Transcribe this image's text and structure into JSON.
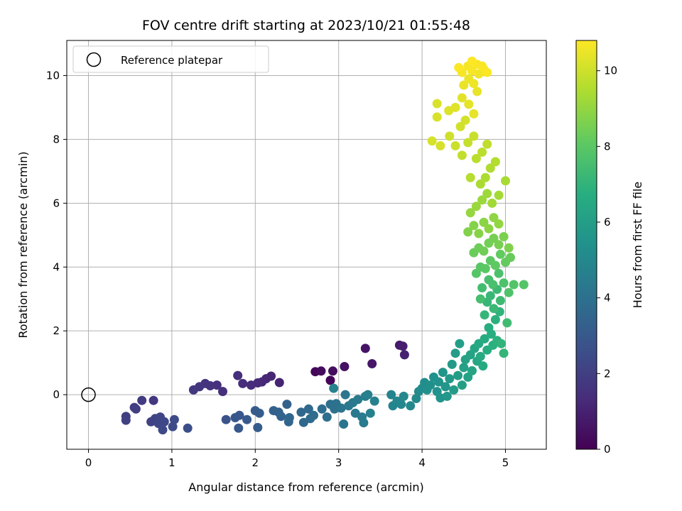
{
  "chart_data": {
    "type": "scatter",
    "title": "FOV centre drift starting at 2023/10/21 01:55:48",
    "xlabel": "Angular distance from reference (arcmin)",
    "ylabel": "Rotation from reference (arcmin)",
    "xlim": [
      -0.26,
      5.49
    ],
    "ylim": [
      -1.71,
      11.1
    ],
    "xticks": [
      0,
      1,
      2,
      3,
      4,
      5
    ],
    "yticks": [
      0,
      2,
      4,
      6,
      8,
      10
    ],
    "grid": true,
    "legend": {
      "position": "top-left",
      "entries": [
        {
          "label": "Reference platepar",
          "marker": "open-circle"
        }
      ]
    },
    "reference_point": {
      "x": 0,
      "y": 0
    },
    "colorbar": {
      "label": "Hours from first FF file",
      "colormap": "viridis",
      "range": [
        0,
        10.8
      ],
      "ticks": [
        0,
        2,
        4,
        6,
        8,
        10
      ]
    },
    "points": [
      {
        "x": 2.9,
        "y": 0.45,
        "h": 0.1
      },
      {
        "x": 2.72,
        "y": 0.72,
        "h": 0.2
      },
      {
        "x": 2.79,
        "y": 0.74,
        "h": 0.3
      },
      {
        "x": 2.93,
        "y": 0.74,
        "h": 0.4
      },
      {
        "x": 3.07,
        "y": 0.88,
        "h": 0.5
      },
      {
        "x": 3.32,
        "y": 1.45,
        "h": 0.6
      },
      {
        "x": 3.4,
        "y": 0.97,
        "h": 0.7
      },
      {
        "x": 3.73,
        "y": 1.55,
        "h": 0.8
      },
      {
        "x": 3.77,
        "y": 1.52,
        "h": 0.9
      },
      {
        "x": 3.79,
        "y": 1.25,
        "h": 1.0
      },
      {
        "x": 2.29,
        "y": 0.38,
        "h": 1.1
      },
      {
        "x": 2.19,
        "y": 0.58,
        "h": 1.15
      },
      {
        "x": 2.13,
        "y": 0.5,
        "h": 1.2
      },
      {
        "x": 2.08,
        "y": 0.4,
        "h": 1.25
      },
      {
        "x": 2.03,
        "y": 0.37,
        "h": 1.3
      },
      {
        "x": 1.95,
        "y": 0.3,
        "h": 1.35
      },
      {
        "x": 1.85,
        "y": 0.35,
        "h": 1.4
      },
      {
        "x": 1.79,
        "y": 0.6,
        "h": 1.45
      },
      {
        "x": 1.61,
        "y": 0.1,
        "h": 1.5
      },
      {
        "x": 1.54,
        "y": 0.3,
        "h": 1.55
      },
      {
        "x": 1.46,
        "y": 0.28,
        "h": 1.6
      },
      {
        "x": 1.4,
        "y": 0.35,
        "h": 1.65
      },
      {
        "x": 1.33,
        "y": 0.25,
        "h": 1.7
      },
      {
        "x": 1.26,
        "y": 0.15,
        "h": 1.75
      },
      {
        "x": 0.78,
        "y": -0.18,
        "h": 1.8
      },
      {
        "x": 0.64,
        "y": -0.18,
        "h": 1.9
      },
      {
        "x": 0.55,
        "y": -0.4,
        "h": 1.95
      },
      {
        "x": 0.57,
        "y": -0.45,
        "h": 2.0
      },
      {
        "x": 0.45,
        "y": -0.68,
        "h": 2.05
      },
      {
        "x": 0.45,
        "y": -0.8,
        "h": 2.1
      },
      {
        "x": 0.75,
        "y": -0.85,
        "h": 2.15
      },
      {
        "x": 0.8,
        "y": -0.75,
        "h": 2.2
      },
      {
        "x": 0.86,
        "y": -0.7,
        "h": 2.25
      },
      {
        "x": 0.84,
        "y": -0.9,
        "h": 2.3
      },
      {
        "x": 0.91,
        "y": -0.85,
        "h": 2.35
      },
      {
        "x": 0.89,
        "y": -1.1,
        "h": 2.4
      },
      {
        "x": 1.01,
        "y": -1.0,
        "h": 2.45
      },
      {
        "x": 1.03,
        "y": -0.78,
        "h": 2.5
      },
      {
        "x": 1.19,
        "y": -1.05,
        "h": 2.6
      },
      {
        "x": 1.65,
        "y": -0.78,
        "h": 2.8
      },
      {
        "x": 1.76,
        "y": -0.72,
        "h": 2.9
      },
      {
        "x": 1.81,
        "y": -0.65,
        "h": 2.95
      },
      {
        "x": 1.8,
        "y": -1.05,
        "h": 3.0
      },
      {
        "x": 1.9,
        "y": -0.78,
        "h": 3.05
      },
      {
        "x": 2.0,
        "y": -0.5,
        "h": 3.1
      },
      {
        "x": 2.05,
        "y": -0.58,
        "h": 3.15
      },
      {
        "x": 2.03,
        "y": -1.03,
        "h": 3.2
      },
      {
        "x": 2.22,
        "y": -0.5,
        "h": 3.3
      },
      {
        "x": 2.28,
        "y": -0.55,
        "h": 3.35
      },
      {
        "x": 2.31,
        "y": -0.68,
        "h": 3.4
      },
      {
        "x": 2.38,
        "y": -0.3,
        "h": 3.45
      },
      {
        "x": 2.4,
        "y": -0.85,
        "h": 3.5
      },
      {
        "x": 2.41,
        "y": -0.72,
        "h": 3.55
      },
      {
        "x": 2.55,
        "y": -0.55,
        "h": 3.6
      },
      {
        "x": 2.58,
        "y": -0.87,
        "h": 3.65
      },
      {
        "x": 2.64,
        "y": -0.45,
        "h": 3.7
      },
      {
        "x": 2.66,
        "y": -0.75,
        "h": 3.75
      },
      {
        "x": 2.7,
        "y": -0.65,
        "h": 3.8
      },
      {
        "x": 2.8,
        "y": -0.45,
        "h": 3.85
      },
      {
        "x": 2.86,
        "y": -0.7,
        "h": 3.9
      },
      {
        "x": 2.9,
        "y": -0.3,
        "h": 3.95
      },
      {
        "x": 2.95,
        "y": -0.45,
        "h": 4.0
      },
      {
        "x": 2.97,
        "y": -0.28,
        "h": 4.05
      },
      {
        "x": 3.03,
        "y": -0.42,
        "h": 4.1
      },
      {
        "x": 3.06,
        "y": -0.92,
        "h": 4.15
      },
      {
        "x": 3.08,
        "y": 0.0,
        "h": 4.2
      },
      {
        "x": 3.12,
        "y": -0.35,
        "h": 4.25
      },
      {
        "x": 3.17,
        "y": -0.25,
        "h": 4.3
      },
      {
        "x": 3.2,
        "y": -0.58,
        "h": 4.35
      },
      {
        "x": 3.23,
        "y": -0.15,
        "h": 4.4
      },
      {
        "x": 3.28,
        "y": -0.7,
        "h": 4.45
      },
      {
        "x": 3.3,
        "y": -0.88,
        "h": 4.5
      },
      {
        "x": 3.32,
        "y": -0.05,
        "h": 4.55
      },
      {
        "x": 3.35,
        "y": 0.0,
        "h": 4.6
      },
      {
        "x": 3.38,
        "y": -0.58,
        "h": 4.65
      },
      {
        "x": 3.43,
        "y": -0.2,
        "h": 4.7
      },
      {
        "x": 2.94,
        "y": 0.2,
        "h": 4.75
      },
      {
        "x": 3.63,
        "y": 0.0,
        "h": 4.8
      },
      {
        "x": 3.65,
        "y": -0.35,
        "h": 4.85
      },
      {
        "x": 3.7,
        "y": -0.2,
        "h": 4.9
      },
      {
        "x": 3.75,
        "y": -0.3,
        "h": 4.95
      },
      {
        "x": 3.78,
        "y": -0.05,
        "h": 5.0
      },
      {
        "x": 3.86,
        "y": -0.35,
        "h": 5.05
      },
      {
        "x": 3.93,
        "y": -0.12,
        "h": 5.1
      },
      {
        "x": 3.96,
        "y": 0.1,
        "h": 5.15
      },
      {
        "x": 4.0,
        "y": 0.2,
        "h": 5.2
      },
      {
        "x": 4.03,
        "y": 0.38,
        "h": 5.25
      },
      {
        "x": 4.06,
        "y": 0.15,
        "h": 5.3
      },
      {
        "x": 4.1,
        "y": 0.3,
        "h": 5.35
      },
      {
        "x": 4.14,
        "y": 0.55,
        "h": 5.4
      },
      {
        "x": 4.18,
        "y": 0.1,
        "h": 5.45
      },
      {
        "x": 4.2,
        "y": 0.4,
        "h": 5.5
      },
      {
        "x": 4.22,
        "y": -0.1,
        "h": 5.55
      },
      {
        "x": 4.25,
        "y": 0.7,
        "h": 5.6
      },
      {
        "x": 4.28,
        "y": 0.25,
        "h": 5.65
      },
      {
        "x": 4.3,
        "y": -0.05,
        "h": 5.7
      },
      {
        "x": 4.33,
        "y": 0.5,
        "h": 5.75
      },
      {
        "x": 4.36,
        "y": 0.95,
        "h": 5.8
      },
      {
        "x": 4.38,
        "y": 0.15,
        "h": 5.85
      },
      {
        "x": 4.4,
        "y": 1.3,
        "h": 5.9
      },
      {
        "x": 4.43,
        "y": 0.6,
        "h": 5.95
      },
      {
        "x": 4.45,
        "y": 1.6,
        "h": 6.0
      },
      {
        "x": 4.48,
        "y": 0.3,
        "h": 6.05
      },
      {
        "x": 4.5,
        "y": 0.85,
        "h": 6.1
      },
      {
        "x": 4.52,
        "y": 1.1,
        "h": 6.15
      },
      {
        "x": 4.55,
        "y": 0.55,
        "h": 6.2
      },
      {
        "x": 4.58,
        "y": 1.25,
        "h": 6.25
      },
      {
        "x": 4.6,
        "y": 0.75,
        "h": 6.3
      },
      {
        "x": 4.63,
        "y": 1.45,
        "h": 6.35
      },
      {
        "x": 4.66,
        "y": 1.05,
        "h": 6.4
      },
      {
        "x": 4.68,
        "y": 1.6,
        "h": 6.45
      },
      {
        "x": 4.7,
        "y": 1.2,
        "h": 6.5
      },
      {
        "x": 4.73,
        "y": 0.9,
        "h": 6.55
      },
      {
        "x": 4.75,
        "y": 1.75,
        "h": 6.6
      },
      {
        "x": 4.78,
        "y": 1.4,
        "h": 6.65
      },
      {
        "x": 4.8,
        "y": 2.1,
        "h": 6.7
      },
      {
        "x": 4.83,
        "y": 1.9,
        "h": 6.75
      },
      {
        "x": 4.85,
        "y": 1.55,
        "h": 6.8
      },
      {
        "x": 4.88,
        "y": 2.35,
        "h": 6.85
      },
      {
        "x": 4.9,
        "y": 1.7,
        "h": 6.9
      },
      {
        "x": 4.93,
        "y": 2.6,
        "h": 6.95
      },
      {
        "x": 4.95,
        "y": 1.6,
        "h": 7.0
      },
      {
        "x": 4.98,
        "y": 1.3,
        "h": 7.05
      },
      {
        "x": 4.75,
        "y": 2.5,
        "h": 7.1
      },
      {
        "x": 4.78,
        "y": 2.9,
        "h": 7.15
      },
      {
        "x": 4.82,
        "y": 3.1,
        "h": 7.2
      },
      {
        "x": 4.86,
        "y": 2.7,
        "h": 7.25
      },
      {
        "x": 4.9,
        "y": 3.3,
        "h": 7.3
      },
      {
        "x": 4.94,
        "y": 2.95,
        "h": 7.35
      },
      {
        "x": 5.02,
        "y": 2.25,
        "h": 7.4
      },
      {
        "x": 4.72,
        "y": 3.35,
        "h": 7.45
      },
      {
        "x": 4.7,
        "y": 3.0,
        "h": 7.5
      },
      {
        "x": 4.8,
        "y": 3.6,
        "h": 7.55
      },
      {
        "x": 4.85,
        "y": 3.45,
        "h": 7.6
      },
      {
        "x": 4.92,
        "y": 3.8,
        "h": 7.65
      },
      {
        "x": 4.98,
        "y": 3.5,
        "h": 7.7
      },
      {
        "x": 5.04,
        "y": 3.2,
        "h": 7.75
      },
      {
        "x": 5.1,
        "y": 3.45,
        "h": 7.8
      },
      {
        "x": 5.22,
        "y": 3.45,
        "h": 7.85
      },
      {
        "x": 4.65,
        "y": 3.8,
        "h": 7.9
      },
      {
        "x": 4.7,
        "y": 4.0,
        "h": 7.95
      },
      {
        "x": 4.76,
        "y": 3.95,
        "h": 8.0
      },
      {
        "x": 4.82,
        "y": 4.2,
        "h": 8.05
      },
      {
        "x": 4.88,
        "y": 4.05,
        "h": 8.1
      },
      {
        "x": 4.94,
        "y": 4.4,
        "h": 8.15
      },
      {
        "x": 5.0,
        "y": 4.15,
        "h": 8.2
      },
      {
        "x": 5.06,
        "y": 4.3,
        "h": 8.25
      },
      {
        "x": 4.62,
        "y": 4.45,
        "h": 8.3
      },
      {
        "x": 4.68,
        "y": 4.6,
        "h": 8.35
      },
      {
        "x": 4.74,
        "y": 4.5,
        "h": 8.4
      },
      {
        "x": 4.8,
        "y": 4.75,
        "h": 8.45
      },
      {
        "x": 4.86,
        "y": 4.9,
        "h": 8.5
      },
      {
        "x": 4.92,
        "y": 4.7,
        "h": 8.55
      },
      {
        "x": 4.98,
        "y": 4.95,
        "h": 8.6
      },
      {
        "x": 5.04,
        "y": 4.6,
        "h": 8.65
      },
      {
        "x": 4.55,
        "y": 5.1,
        "h": 8.7
      },
      {
        "x": 4.62,
        "y": 5.3,
        "h": 8.75
      },
      {
        "x": 4.68,
        "y": 5.05,
        "h": 8.8
      },
      {
        "x": 4.74,
        "y": 5.4,
        "h": 8.85
      },
      {
        "x": 4.8,
        "y": 5.2,
        "h": 8.9
      },
      {
        "x": 4.86,
        "y": 5.55,
        "h": 8.95
      },
      {
        "x": 4.92,
        "y": 5.35,
        "h": 9.0
      },
      {
        "x": 4.58,
        "y": 5.7,
        "h": 9.05
      },
      {
        "x": 4.65,
        "y": 5.9,
        "h": 9.1
      },
      {
        "x": 4.72,
        "y": 6.1,
        "h": 9.15
      },
      {
        "x": 4.78,
        "y": 6.3,
        "h": 9.2
      },
      {
        "x": 4.84,
        "y": 6.0,
        "h": 9.25
      },
      {
        "x": 4.92,
        "y": 6.25,
        "h": 9.3
      },
      {
        "x": 5.0,
        "y": 6.7,
        "h": 9.35
      },
      {
        "x": 4.7,
        "y": 6.6,
        "h": 9.4
      },
      {
        "x": 4.76,
        "y": 6.8,
        "h": 9.45
      },
      {
        "x": 4.82,
        "y": 7.1,
        "h": 9.5
      },
      {
        "x": 4.88,
        "y": 7.3,
        "h": 9.55
      },
      {
        "x": 4.58,
        "y": 6.8,
        "h": 9.6
      },
      {
        "x": 4.65,
        "y": 7.4,
        "h": 9.65
      },
      {
        "x": 4.72,
        "y": 7.6,
        "h": 9.7
      },
      {
        "x": 4.78,
        "y": 7.85,
        "h": 9.75
      },
      {
        "x": 4.48,
        "y": 7.5,
        "h": 9.8
      },
      {
        "x": 4.55,
        "y": 7.9,
        "h": 9.85
      },
      {
        "x": 4.62,
        "y": 8.1,
        "h": 9.9
      },
      {
        "x": 4.4,
        "y": 7.8,
        "h": 9.95
      },
      {
        "x": 4.33,
        "y": 8.1,
        "h": 10.0
      },
      {
        "x": 4.46,
        "y": 8.4,
        "h": 10.05
      },
      {
        "x": 4.52,
        "y": 8.6,
        "h": 10.1
      },
      {
        "x": 4.22,
        "y": 7.8,
        "h": 10.12
      },
      {
        "x": 4.12,
        "y": 7.95,
        "h": 10.15
      },
      {
        "x": 4.18,
        "y": 8.7,
        "h": 10.18
      },
      {
        "x": 4.18,
        "y": 9.12,
        "h": 10.2
      },
      {
        "x": 4.32,
        "y": 8.9,
        "h": 10.25
      },
      {
        "x": 4.4,
        "y": 9.0,
        "h": 10.3
      },
      {
        "x": 4.48,
        "y": 9.3,
        "h": 10.35
      },
      {
        "x": 4.56,
        "y": 9.1,
        "h": 10.4
      },
      {
        "x": 4.62,
        "y": 8.8,
        "h": 10.42
      },
      {
        "x": 4.66,
        "y": 9.5,
        "h": 10.45
      },
      {
        "x": 4.5,
        "y": 9.7,
        "h": 10.48
      },
      {
        "x": 4.56,
        "y": 9.9,
        "h": 10.5
      },
      {
        "x": 4.62,
        "y": 9.75,
        "h": 10.55
      },
      {
        "x": 4.68,
        "y": 10.05,
        "h": 10.6
      },
      {
        "x": 4.74,
        "y": 10.2,
        "h": 10.62
      },
      {
        "x": 4.55,
        "y": 10.3,
        "h": 10.65
      },
      {
        "x": 4.48,
        "y": 10.1,
        "h": 10.68
      },
      {
        "x": 4.6,
        "y": 10.15,
        "h": 10.7
      },
      {
        "x": 4.66,
        "y": 10.35,
        "h": 10.72
      },
      {
        "x": 4.72,
        "y": 10.3,
        "h": 10.74
      },
      {
        "x": 4.78,
        "y": 10.1,
        "h": 10.76
      },
      {
        "x": 4.44,
        "y": 10.25,
        "h": 10.78
      },
      {
        "x": 4.6,
        "y": 10.45,
        "h": 10.8
      }
    ]
  }
}
